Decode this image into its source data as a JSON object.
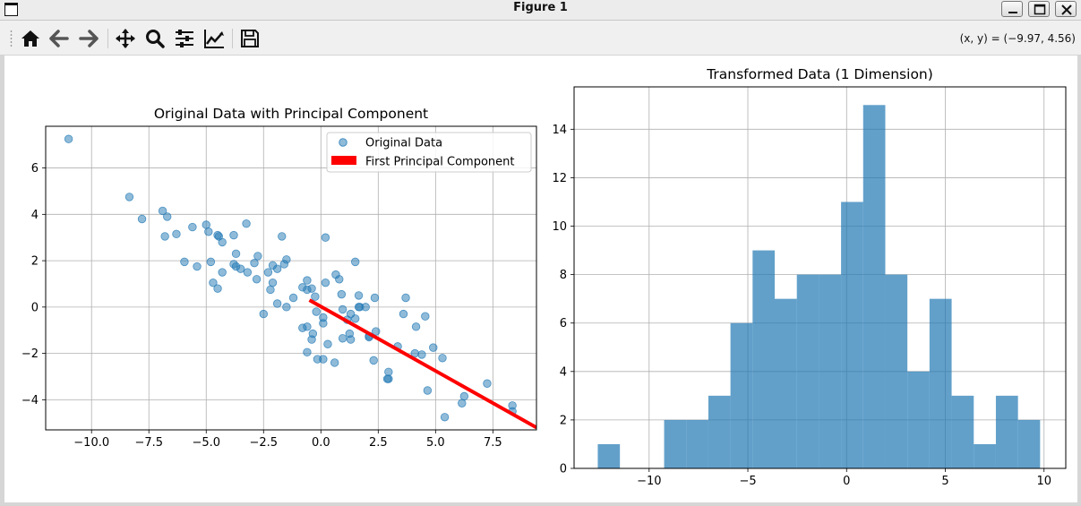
{
  "window": {
    "title": "Figure 1"
  },
  "toolbar": {
    "buttons": [
      {
        "name": "home-button",
        "icon": "home-icon"
      },
      {
        "name": "back-button",
        "icon": "arrow-left-icon"
      },
      {
        "name": "forward-button",
        "icon": "arrow-right-icon"
      },
      {
        "name": "pan-button",
        "icon": "move-icon"
      },
      {
        "name": "zoom-button",
        "icon": "magnifier-icon"
      },
      {
        "name": "configure-subplots-button",
        "icon": "sliders-icon"
      },
      {
        "name": "edit-axes-button",
        "icon": "line-chart-icon"
      },
      {
        "name": "save-button",
        "icon": "floppy-disk-icon"
      }
    ],
    "coords_text": "(x, y) = (−9.97, 4.56)"
  },
  "chart_data": [
    {
      "type": "scatter",
      "title": "Original Data with Principal Component",
      "xlabel": "",
      "ylabel": "",
      "xlim": [
        -12,
        9.4
      ],
      "ylim": [
        -5.3,
        7.8
      ],
      "xticks": [
        -10,
        -7.5,
        -5,
        -2.5,
        0,
        2.5,
        5,
        7.5
      ],
      "xtick_labels": [
        "−10.0",
        "−7.5",
        "−5.0",
        "−2.5",
        "0.0",
        "2.5",
        "5.0",
        "7.5"
      ],
      "yticks": [
        -4,
        -2,
        0,
        2,
        4,
        6
      ],
      "ytick_labels": [
        "−4",
        "−2",
        "0",
        "2",
        "4",
        "6"
      ],
      "grid": true,
      "legend": "top-right",
      "series": [
        {
          "name": "Original Data",
          "kind": "scatter",
          "color": "#1f77b4",
          "alpha": 0.5,
          "points": [
            [
              -11.0,
              7.25
            ],
            [
              -8.35,
              4.75
            ],
            [
              -7.8,
              3.8
            ],
            [
              -6.9,
              4.15
            ],
            [
              -6.7,
              3.9
            ],
            [
              -6.8,
              3.05
            ],
            [
              -6.3,
              3.15
            ],
            [
              -5.6,
              3.45
            ],
            [
              -5.0,
              3.55
            ],
            [
              -4.5,
              3.1
            ],
            [
              -4.45,
              3.05
            ],
            [
              -4.3,
              2.8
            ],
            [
              -3.8,
              3.1
            ],
            [
              -3.25,
              3.6
            ],
            [
              -5.95,
              1.95
            ],
            [
              -5.4,
              1.75
            ],
            [
              -4.8,
              1.95
            ],
            [
              -4.3,
              1.5
            ],
            [
              -3.7,
              2.3
            ],
            [
              -3.7,
              1.75
            ],
            [
              -3.5,
              1.65
            ],
            [
              -3.2,
              1.5
            ],
            [
              -2.9,
              1.9
            ],
            [
              -2.75,
              2.2
            ],
            [
              -2.8,
              1.2
            ],
            [
              -2.3,
              1.5
            ],
            [
              -2.1,
              1.8
            ],
            [
              -1.9,
              1.65
            ],
            [
              -1.7,
              3.05
            ],
            [
              -1.5,
              2.05
            ],
            [
              -1.6,
              1.85
            ],
            [
              -4.9,
              3.25
            ],
            [
              -4.7,
              1.05
            ],
            [
              -4.5,
              0.8
            ],
            [
              -3.8,
              1.85
            ],
            [
              -2.2,
              0.75
            ],
            [
              -2.1,
              1.05
            ],
            [
              -1.9,
              0.15
            ],
            [
              -1.5,
              0.0
            ],
            [
              -2.5,
              -0.3
            ],
            [
              -1.2,
              0.4
            ],
            [
              -0.8,
              0.85
            ],
            [
              -0.6,
              0.75
            ],
            [
              -0.6,
              1.15
            ],
            [
              -0.25,
              0.45
            ],
            [
              -0.4,
              0.8
            ],
            [
              -0.2,
              -0.2
            ],
            [
              0.1,
              -0.45
            ],
            [
              0.1,
              -0.7
            ],
            [
              0.2,
              3.0
            ],
            [
              0.2,
              1.05
            ],
            [
              0.65,
              1.4
            ],
            [
              0.8,
              1.2
            ],
            [
              0.9,
              0.55
            ],
            [
              0.95,
              -0.1
            ],
            [
              1.15,
              -0.55
            ],
            [
              1.3,
              -0.3
            ],
            [
              1.5,
              -0.5
            ],
            [
              1.5,
              1.95
            ],
            [
              1.65,
              0.5
            ],
            [
              1.65,
              0.0
            ],
            [
              1.7,
              0.0
            ],
            [
              1.95,
              0.0
            ],
            [
              2.1,
              -1.3
            ],
            [
              2.1,
              -1.25
            ],
            [
              2.4,
              -1.05
            ],
            [
              2.35,
              0.4
            ],
            [
              -0.8,
              -0.9
            ],
            [
              -0.6,
              -0.85
            ],
            [
              -0.4,
              -1.4
            ],
            [
              -0.35,
              -1.15
            ],
            [
              -0.6,
              -1.95
            ],
            [
              -0.15,
              -2.25
            ],
            [
              0.1,
              -2.25
            ],
            [
              0.3,
              -1.6
            ],
            [
              0.6,
              -2.4
            ],
            [
              0.95,
              -1.35
            ],
            [
              1.25,
              -1.15
            ],
            [
              1.3,
              -1.4
            ],
            [
              2.3,
              -2.3
            ],
            [
              2.95,
              -2.8
            ],
            [
              2.95,
              -3.1
            ],
            [
              2.9,
              -3.1
            ],
            [
              3.35,
              -1.7
            ],
            [
              3.6,
              -0.3
            ],
            [
              3.7,
              0.4
            ],
            [
              4.15,
              -0.85
            ],
            [
              4.1,
              -2.0
            ],
            [
              4.4,
              -2.05
            ],
            [
              4.55,
              -0.4
            ],
            [
              4.65,
              -3.6
            ],
            [
              4.9,
              -1.75
            ],
            [
              5.3,
              -2.2
            ],
            [
              5.4,
              -4.75
            ],
            [
              6.15,
              -4.15
            ],
            [
              6.25,
              -3.85
            ],
            [
              7.25,
              -3.3
            ],
            [
              8.35,
              -4.25
            ],
            [
              8.35,
              -4.5
            ]
          ]
        },
        {
          "name": "First Principal Component",
          "kind": "line",
          "color": "#ff0000",
          "from": [
            -0.5,
            0.3
          ],
          "to": [
            9.4,
            -5.2
          ]
        }
      ]
    },
    {
      "type": "bar",
      "subtype": "histogram",
      "title": "Transformed Data (1 Dimension)",
      "xlabel": "",
      "ylabel": "",
      "xlim": [
        -13.8,
        11.1
      ],
      "ylim": [
        0,
        15.75
      ],
      "xticks": [
        -10,
        -5,
        0,
        5,
        10
      ],
      "xtick_labels": [
        "−10",
        "−5",
        "0",
        "5",
        "10"
      ],
      "yticks": [
        0,
        2,
        4,
        6,
        8,
        10,
        12,
        14
      ],
      "ytick_labels": [
        "0",
        "2",
        "4",
        "6",
        "8",
        "10",
        "12",
        "14"
      ],
      "grid": true,
      "color": "#1f77b4",
      "alpha": 0.7,
      "bin_edges": [
        -12.6,
        -11.48,
        -10.36,
        -9.24,
        -8.12,
        -7.0,
        -5.88,
        -4.76,
        -3.64,
        -2.52,
        -1.4,
        -0.28,
        0.84,
        1.96,
        3.08,
        4.2,
        5.32,
        6.44,
        7.56,
        8.68,
        9.8
      ],
      "values": [
        1,
        0,
        0,
        2,
        2,
        3,
        6,
        9,
        7,
        8,
        8,
        11,
        15,
        8,
        4,
        7,
        3,
        1,
        3,
        2
      ]
    }
  ]
}
